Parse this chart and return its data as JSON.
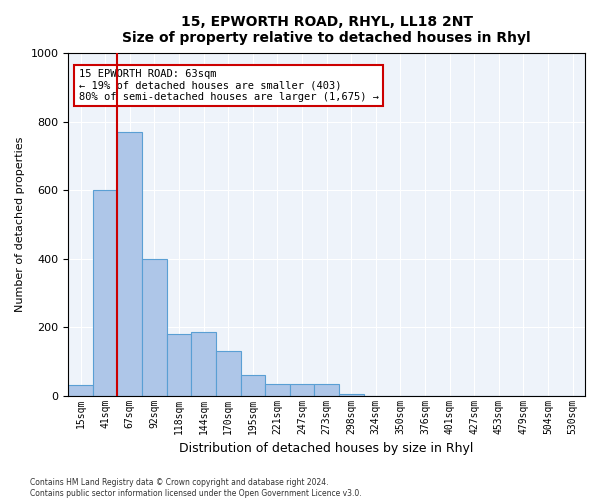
{
  "title": "15, EPWORTH ROAD, RHYL, LL18 2NT",
  "subtitle": "Size of property relative to detached houses in Rhyl",
  "xlabel": "Distribution of detached houses by size in Rhyl",
  "ylabel": "Number of detached properties",
  "bin_labels": [
    "15sqm",
    "41sqm",
    "67sqm",
    "92sqm",
    "118sqm",
    "144sqm",
    "170sqm",
    "195sqm",
    "221sqm",
    "247sqm",
    "273sqm",
    "298sqm",
    "324sqm",
    "350sqm",
    "376sqm",
    "401sqm",
    "427sqm",
    "453sqm",
    "479sqm",
    "504sqm",
    "530sqm"
  ],
  "bar_values": [
    30,
    600,
    770,
    400,
    180,
    185,
    130,
    60,
    35,
    35,
    35,
    5,
    0,
    0,
    0,
    0,
    0,
    0,
    0,
    0,
    0
  ],
  "bar_color": "#aec6e8",
  "bar_edge_color": "#5a9fd4",
  "bar_edge_width": 0.8,
  "background_color": "#eef3fa",
  "grid_color": "#ffffff",
  "ylim": [
    0,
    1000
  ],
  "yticks": [
    0,
    200,
    400,
    600,
    800,
    1000
  ],
  "property_line_x": 1.5,
  "property_line_color": "#cc0000",
  "annotation_line1": "15 EPWORTH ROAD: 63sqm",
  "annotation_line2": "← 19% of detached houses are smaller (403)",
  "annotation_line3": "80% of semi-detached houses are larger (1,675) →",
  "annotation_box_color": "#ffffff",
  "annotation_box_edge_color": "#cc0000",
  "footer_line1": "Contains HM Land Registry data © Crown copyright and database right 2024.",
  "footer_line2": "Contains public sector information licensed under the Open Government Licence v3.0."
}
